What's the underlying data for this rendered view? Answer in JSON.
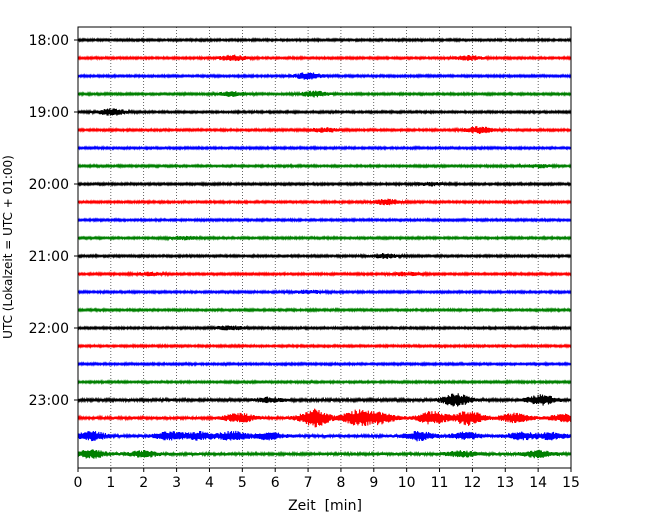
{
  "chart_data": {
    "type": "line",
    "title": "",
    "xlabel": "Zeit  [min]",
    "ylabel": "UTC (Lokalzeit = UTC + 01:00)",
    "xlim": [
      0,
      15
    ],
    "x_ticks": [
      "0",
      "1",
      "2",
      "3",
      "4",
      "5",
      "6",
      "7",
      "8",
      "9",
      "10",
      "11",
      "12",
      "13",
      "14",
      "15"
    ],
    "y_ticks": [
      {
        "label": "18:00",
        "row": 0
      },
      {
        "label": "19:00",
        "row": 4
      },
      {
        "label": "20:00",
        "row": 8
      },
      {
        "label": "21:00",
        "row": 12
      },
      {
        "label": "22:00",
        "row": 16
      },
      {
        "label": "23:00",
        "row": 20
      }
    ],
    "grid": "vertical dotted lines at each minute",
    "trace_colors": [
      "#000000",
      "#ff0000",
      "#0000ff",
      "#008000"
    ],
    "traces": [
      {
        "start": "18:00",
        "base": 1.0,
        "events": []
      },
      {
        "start": "18:15",
        "base": 1.0,
        "events": [
          {
            "t": 4.7,
            "amp": 2.5
          },
          {
            "t": 11.9,
            "amp": 2.0
          }
        ]
      },
      {
        "start": "18:30",
        "base": 1.0,
        "events": [
          {
            "t": 7.0,
            "amp": 3.0
          }
        ]
      },
      {
        "start": "18:45",
        "base": 1.0,
        "events": [
          {
            "t": 4.7,
            "amp": 2.0
          },
          {
            "t": 7.2,
            "amp": 2.5
          }
        ]
      },
      {
        "start": "19:00",
        "base": 1.0,
        "events": [
          {
            "t": 1.05,
            "amp": 3.0
          }
        ]
      },
      {
        "start": "19:15",
        "base": 1.0,
        "events": [
          {
            "t": 7.5,
            "amp": 2.0
          },
          {
            "t": 12.2,
            "amp": 3.0
          }
        ]
      },
      {
        "start": "19:30",
        "base": 1.0,
        "events": []
      },
      {
        "start": "19:45",
        "base": 1.0,
        "events": [
          {
            "t": 14.0,
            "amp": 1.5
          }
        ]
      },
      {
        "start": "20:00",
        "base": 1.0,
        "events": [
          {
            "t": 10.7,
            "amp": 1.5
          }
        ]
      },
      {
        "start": "20:15",
        "base": 1.0,
        "events": [
          {
            "t": 9.4,
            "amp": 2.5
          }
        ]
      },
      {
        "start": "20:30",
        "base": 1.0,
        "events": []
      },
      {
        "start": "20:45",
        "base": 1.0,
        "events": [
          {
            "t": 3.2,
            "amp": 1.5
          }
        ]
      },
      {
        "start": "21:00",
        "base": 1.0,
        "events": [
          {
            "t": 9.3,
            "amp": 2.0
          }
        ]
      },
      {
        "start": "21:15",
        "base": 1.0,
        "events": [
          {
            "t": 2.2,
            "amp": 1.5
          },
          {
            "t": 10.0,
            "amp": 1.5
          }
        ]
      },
      {
        "start": "21:30",
        "base": 1.0,
        "events": [
          {
            "t": 7.0,
            "amp": 1.5
          }
        ]
      },
      {
        "start": "21:45",
        "base": 1.0,
        "events": []
      },
      {
        "start": "22:00",
        "base": 1.0,
        "events": [
          {
            "t": 4.6,
            "amp": 2.0
          }
        ]
      },
      {
        "start": "22:15",
        "base": 1.0,
        "events": []
      },
      {
        "start": "22:30",
        "base": 1.0,
        "events": []
      },
      {
        "start": "22:45",
        "base": 1.0,
        "events": []
      },
      {
        "start": "23:00",
        "base": 1.3,
        "events": [
          {
            "t": 5.8,
            "amp": 2.0
          },
          {
            "t": 11.5,
            "amp": 5.5
          },
          {
            "t": 14.1,
            "amp": 4.5
          }
        ]
      },
      {
        "start": "23:15",
        "base": 1.5,
        "events": [
          {
            "t": 4.9,
            "amp": 4.0
          },
          {
            "t": 7.2,
            "amp": 8.0
          },
          {
            "t": 8.5,
            "amp": 7.0
          },
          {
            "t": 9.2,
            "amp": 5.0
          },
          {
            "t": 10.8,
            "amp": 6.0
          },
          {
            "t": 11.9,
            "amp": 6.5
          },
          {
            "t": 13.3,
            "amp": 4.0
          },
          {
            "t": 14.8,
            "amp": 3.0
          }
        ]
      },
      {
        "start": "23:30",
        "base": 1.5,
        "events": [
          {
            "t": 0.4,
            "amp": 4.0
          },
          {
            "t": 2.8,
            "amp": 3.5
          },
          {
            "t": 3.7,
            "amp": 3.5
          },
          {
            "t": 4.7,
            "amp": 4.0
          },
          {
            "t": 5.8,
            "amp": 3.0
          },
          {
            "t": 10.4,
            "amp": 4.0
          },
          {
            "t": 11.8,
            "amp": 3.0
          },
          {
            "t": 13.5,
            "amp": 3.0
          },
          {
            "t": 14.4,
            "amp": 3.0
          }
        ]
      },
      {
        "start": "23:45",
        "base": 1.5,
        "events": [
          {
            "t": 0.4,
            "amp": 3.5
          },
          {
            "t": 2.0,
            "amp": 2.5
          },
          {
            "t": 11.7,
            "amp": 2.5
          },
          {
            "t": 14.0,
            "amp": 3.0
          }
        ]
      }
    ]
  }
}
